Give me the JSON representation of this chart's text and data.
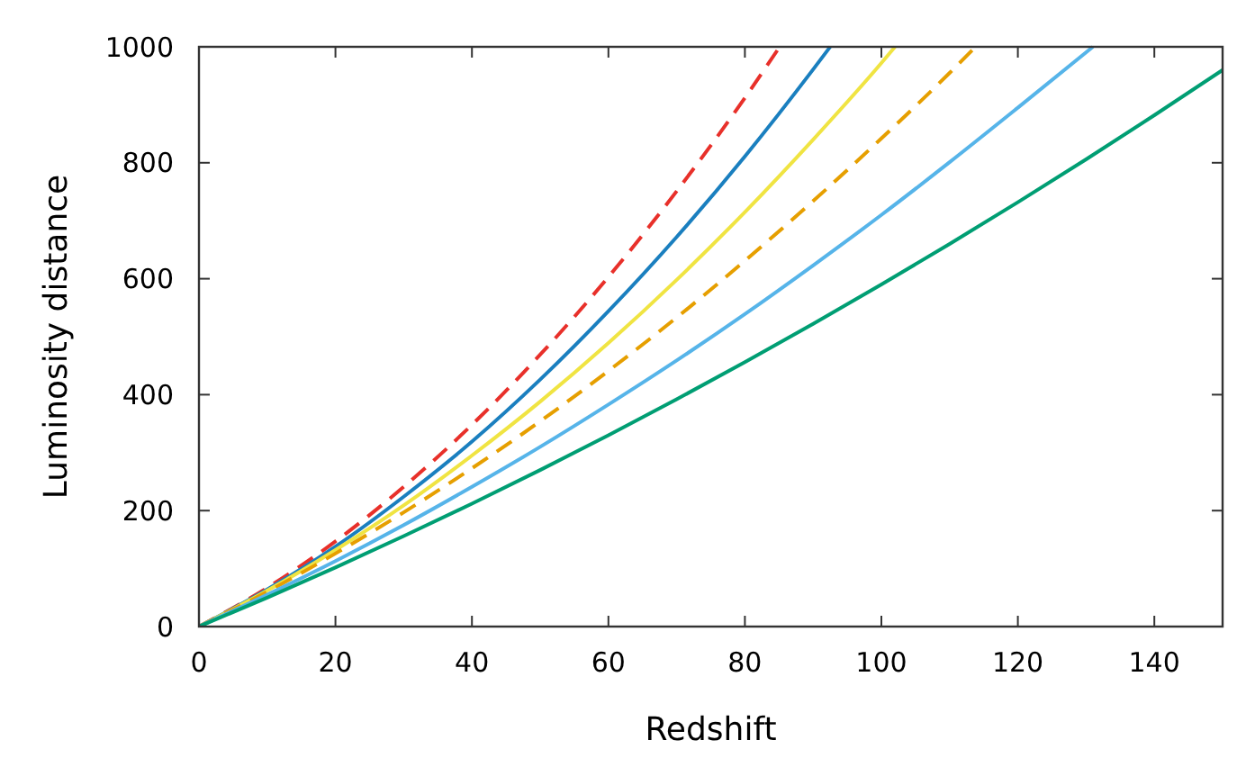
{
  "chart_data": {
    "type": "line",
    "xlabel": "Redshift",
    "ylabel": "Luminosity distance",
    "xlim": [
      0,
      150
    ],
    "ylim": [
      0,
      1000
    ],
    "xticks": [
      0,
      20,
      40,
      60,
      80,
      100,
      120,
      140
    ],
    "yticks": [
      0,
      200,
      400,
      600,
      800,
      1000
    ],
    "grid": false,
    "series": [
      {
        "color": "#e8302a",
        "line_style": "dashed",
        "x": [
          0,
          10,
          20,
          30,
          40,
          50,
          60,
          70,
          80,
          85.1
        ],
        "values": [
          0,
          67,
          147,
          241,
          348,
          469,
          603,
          751,
          912,
          1000
        ]
      },
      {
        "color": "#1a7fbf",
        "line_style": "solid",
        "x": [
          0,
          10,
          20,
          30,
          40,
          50,
          60,
          70,
          80,
          90,
          92.5
        ],
        "values": [
          0,
          64,
          138,
          224,
          319,
          426,
          544,
          672,
          811,
          961,
          1000
        ]
      },
      {
        "color": "#f0e442",
        "line_style": "solid",
        "x": [
          0,
          10,
          20,
          30,
          40,
          50,
          60,
          70,
          80,
          90,
          100,
          102
        ],
        "values": [
          0,
          62,
          132,
          209,
          295,
          388,
          489,
          598,
          715,
          840,
          972,
          1000
        ]
      },
      {
        "color": "#e69f00",
        "line_style": "dashed",
        "x": [
          0,
          10,
          20,
          30,
          40,
          50,
          60,
          70,
          80,
          90,
          100,
          110,
          113.8
        ],
        "values": [
          0,
          60,
          126,
          197,
          273,
          354,
          441,
          533,
          631,
          734,
          842,
          955,
          1000
        ]
      },
      {
        "color": "#56b4e9",
        "line_style": "solid",
        "x": [
          0,
          10,
          20,
          30,
          40,
          50,
          60,
          70,
          80,
          90,
          100,
          110,
          120,
          131
        ],
        "values": [
          0,
          55,
          113,
          175,
          241,
          310,
          383,
          459,
          539,
          623,
          710,
          801,
          895,
          1000
        ]
      },
      {
        "color": "#009e73",
        "line_style": "solid",
        "x": [
          0,
          10,
          20,
          30,
          40,
          50,
          60,
          70,
          80,
          90,
          100,
          110,
          120,
          130,
          140,
          150
        ],
        "values": [
          0,
          50,
          102,
          156,
          212,
          270,
          330,
          392,
          456,
          522,
          590,
          660,
          732,
          806,
          882,
          960
        ]
      }
    ]
  }
}
